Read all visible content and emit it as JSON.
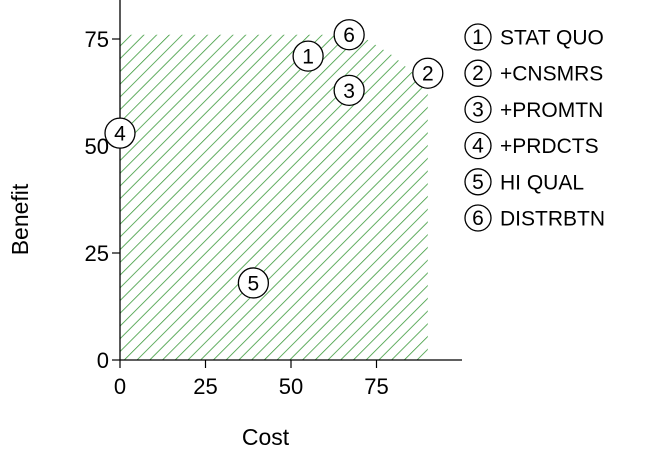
{
  "chart_data": {
    "type": "scatter",
    "title": "",
    "xlabel": "Cost",
    "ylabel": "Benefit",
    "xlim": [
      0,
      100
    ],
    "ylim": [
      0,
      85
    ],
    "x_ticks": [
      0,
      25,
      50,
      75
    ],
    "y_ticks": [
      0,
      25,
      50,
      75
    ],
    "points": [
      {
        "label": "1",
        "x": 55,
        "y": 71
      },
      {
        "label": "2",
        "x": 90,
        "y": 67
      },
      {
        "label": "3",
        "x": 67,
        "y": 63
      },
      {
        "label": "4",
        "x": 0,
        "y": 53
      },
      {
        "label": "5",
        "x": 39,
        "y": 18
      },
      {
        "label": "6",
        "x": 67,
        "y": 76
      }
    ],
    "frontier": [
      [
        0,
        76
      ],
      [
        70,
        76
      ],
      [
        80,
        71
      ],
      [
        90,
        64
      ],
      [
        90,
        0
      ],
      [
        0,
        0
      ]
    ],
    "legend": [
      {
        "num": "1",
        "text": "STAT QUO"
      },
      {
        "num": "2",
        "text": "+CNSMRS"
      },
      {
        "num": "3",
        "text": "+PROMTN"
      },
      {
        "num": "4",
        "text": "+PRDCTS"
      },
      {
        "num": "5",
        "text": "HI QUAL"
      },
      {
        "num": "6",
        "text": "DISTRBTN"
      }
    ],
    "legend_position": "right",
    "hatch_color": "#3c9a3c",
    "grid": false
  }
}
